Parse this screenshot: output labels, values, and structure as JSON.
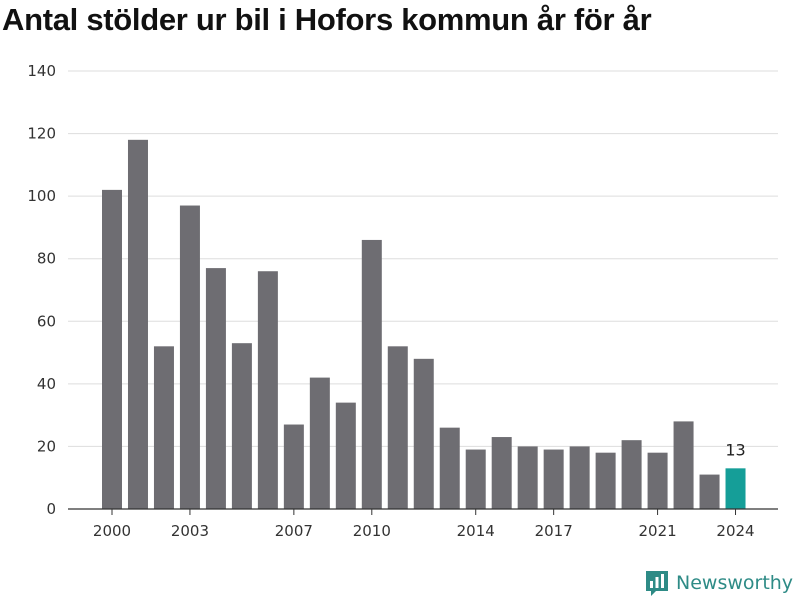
{
  "chart_data": {
    "type": "bar",
    "title": "Antal stölder ur bil i Hofors kommun år för år",
    "x": [
      2000,
      2001,
      2002,
      2003,
      2004,
      2005,
      2006,
      2007,
      2008,
      2009,
      2010,
      2011,
      2012,
      2013,
      2014,
      2015,
      2016,
      2017,
      2018,
      2019,
      2020,
      2021,
      2022,
      2023,
      2024
    ],
    "values": [
      102,
      118,
      52,
      97,
      77,
      53,
      76,
      27,
      42,
      34,
      86,
      52,
      48,
      26,
      19,
      23,
      20,
      19,
      20,
      18,
      22,
      18,
      28,
      11,
      13
    ],
    "x_tick_labels": [
      "2000",
      "2003",
      "2007",
      "2010",
      "2014",
      "2017",
      "2021",
      "2024"
    ],
    "y_ticks": [
      0,
      20,
      40,
      60,
      80,
      100,
      120,
      140
    ],
    "ylim": [
      0,
      140
    ],
    "grid": true,
    "highlight": {
      "year": 2024,
      "label": "13"
    },
    "colors": {
      "bar": "#6e6d72",
      "highlight": "#159e98",
      "grid": "#dddddd"
    }
  },
  "brand": {
    "name": "Newsworthy",
    "icon": "newsworthy-logo-icon",
    "color": "#2e8b86"
  }
}
